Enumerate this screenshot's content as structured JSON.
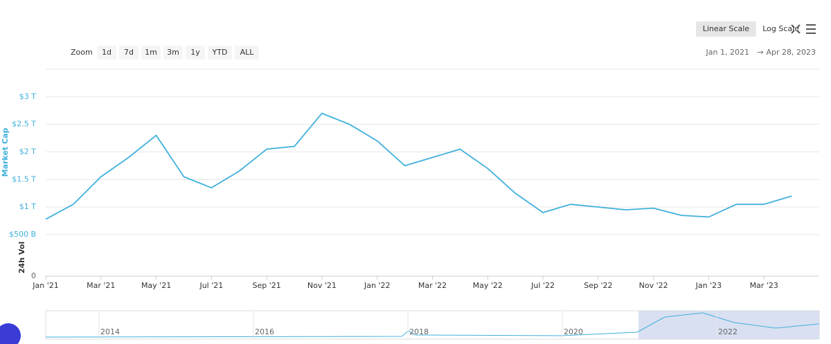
{
  "chart_data": {
    "type": "line",
    "y_axis_label": "Market Cap",
    "zoom_label": "Zoom",
    "zoom_buttons": [
      "1d",
      "7d",
      "1m",
      "3m",
      "1y",
      "YTD",
      "ALL"
    ],
    "scale_buttons": [
      "Linear Scale",
      "Log Scale"
    ],
    "active_scale": "Linear Scale",
    "range_from": "Jan 1, 2021",
    "range_to": "Apr 28, 2023",
    "x": [
      "2021-01",
      "2021-02",
      "2021-03",
      "2021-04",
      "2021-05",
      "2021-06",
      "2021-07",
      "2021-08",
      "2021-09",
      "2021-10",
      "2021-11",
      "2021-12",
      "2022-01",
      "2022-02",
      "2022-03",
      "2022-04",
      "2022-05",
      "2022-06",
      "2022-07",
      "2022-08",
      "2022-09",
      "2022-10",
      "2022-11",
      "2022-12",
      "2023-01",
      "2023-02",
      "2023-03",
      "2023-04"
    ],
    "series": [
      {
        "name": "Market Cap",
        "color": "#3fb0dc",
        "values": [
          0.78,
          1.05,
          1.55,
          1.9,
          2.3,
          1.55,
          1.35,
          1.65,
          2.05,
          2.1,
          2.7,
          2.5,
          2.2,
          1.75,
          1.9,
          2.05,
          1.7,
          1.25,
          0.9,
          1.05,
          1.0,
          0.95,
          0.98,
          0.85,
          0.82,
          1.05,
          1.05,
          1.2
        ]
      }
    ],
    "xlim": [
      "2021-01",
      "2023-05"
    ],
    "xticks": [
      {
        "value": "2021-01",
        "label": "Jan '21"
      },
      {
        "value": "2021-03",
        "label": "Mar '21"
      },
      {
        "value": "2021-05",
        "label": "May '21"
      },
      {
        "value": "2021-07",
        "label": "Jul '21"
      },
      {
        "value": "2021-09",
        "label": "Sep '21"
      },
      {
        "value": "2021-11",
        "label": "Nov '21"
      },
      {
        "value": "2022-01",
        "label": "Jan '22"
      },
      {
        "value": "2022-03",
        "label": "Mar '22"
      },
      {
        "value": "2022-05",
        "label": "May '22"
      },
      {
        "value": "2022-07",
        "label": "Jul '22"
      },
      {
        "value": "2022-09",
        "label": "Sep '22"
      },
      {
        "value": "2022-11",
        "label": "Nov '22"
      },
      {
        "value": "2023-01",
        "label": "Jan '23"
      },
      {
        "value": "2023-03",
        "label": "Mar '23"
      }
    ],
    "ylim": [
      0.5,
      3.5
    ],
    "yticks": [
      {
        "value": 0.5,
        "label": "$500 B"
      },
      {
        "value": 1,
        "label": "$1 T"
      },
      {
        "value": 1.5,
        "label": "$1.5 T"
      },
      {
        "value": 2,
        "label": "$2 T"
      },
      {
        "value": 2.5,
        "label": "$2.5 T"
      },
      {
        "value": 3,
        "label": "$3 T"
      }
    ],
    "grid": true,
    "volume_axis_label": "24h Vol",
    "volume_ticks": [
      0
    ],
    "navigator_labels": [
      "2014",
      "2016",
      "2018",
      "2020",
      "2022"
    ]
  }
}
